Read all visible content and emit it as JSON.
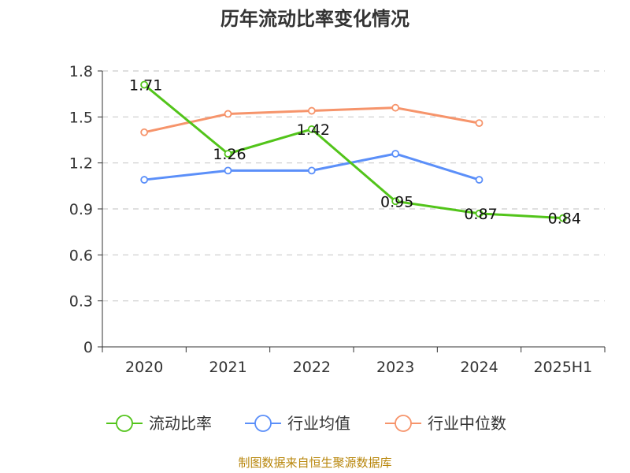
{
  "chart_data": {
    "type": "line",
    "title": "历年流动比率变化情况",
    "categories": [
      "2020",
      "2021",
      "2022",
      "2023",
      "2024",
      "2025H1"
    ],
    "ylim": [
      0,
      1.8
    ],
    "yticks": [
      "0",
      "0.3",
      "0.6",
      "0.9",
      "1.2",
      "1.5",
      "1.8"
    ],
    "grid": true,
    "legend_position": "bottom",
    "series": [
      {
        "name": "流动比率",
        "color": "#52c41a",
        "values": [
          1.71,
          1.26,
          1.42,
          0.95,
          0.87,
          0.84
        ],
        "labels": [
          "1.71",
          "1.26",
          "1.42",
          "0.95",
          "0.87",
          "0.84"
        ]
      },
      {
        "name": "行业均值",
        "color": "#5b8ff9",
        "values": [
          1.09,
          1.15,
          1.15,
          1.26,
          1.09,
          null
        ]
      },
      {
        "name": "行业中位数",
        "color": "#f6946b",
        "values": [
          1.4,
          1.52,
          1.54,
          1.56,
          1.46,
          null
        ]
      }
    ]
  },
  "source": "制图数据来自恒生聚源数据库"
}
